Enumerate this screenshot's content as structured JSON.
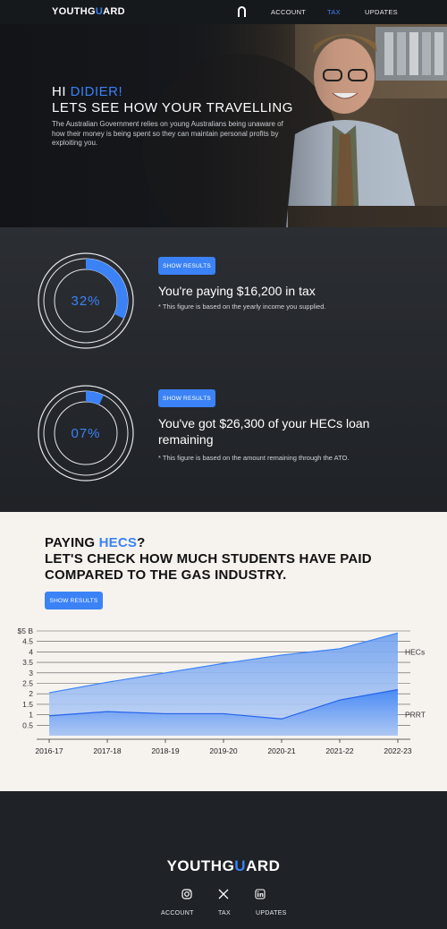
{
  "nav": {
    "logo_pre": "YOUTHG",
    "logo_accent": "U",
    "logo_post": "ARD",
    "links": [
      "ACCOUNT",
      "TAX",
      "UPDATES"
    ],
    "active": "TAX"
  },
  "hero": {
    "greet": "HI ",
    "name": "DIDIER!",
    "title": "LETS SEE HOW YOUR TRAVELLING",
    "subtitle": "The Australian Government relies on young Australians being unaware of how their money is being spent so they can maintain personal profits by exploiting you."
  },
  "results": [
    {
      "percent_label": "32%",
      "percent": 32,
      "button": "SHOW RESULTS",
      "headline": "You're paying $16,200 in tax",
      "note": "* This figure is based on the yearly income you supplied."
    },
    {
      "percent_label": "07%",
      "percent": 7,
      "button": "SHOW RESULTS",
      "headline": "You've got $26,300 of your HECs loan remaining",
      "note": "* This figure is based on the amount remaining through the ATO."
    }
  ],
  "hecs": {
    "title_pre": "PAYING ",
    "title_accent": "HECS",
    "title_post": "?",
    "subtitle": "LET'S CHECK HOW MUCH STUDENTS HAVE PAID COMPARED TO THE GAS INDUSTRY.",
    "button": "SHOW RESULTS"
  },
  "chart_data": {
    "type": "area",
    "categories": [
      "2016-17",
      "2017-18",
      "2018-19",
      "2019-20",
      "2020-21",
      "2021-22",
      "2022-23"
    ],
    "y_ticks": [
      "$5 B",
      "4.5",
      "4",
      "3.5",
      "3",
      "2.5",
      "2",
      "1.5",
      "1",
      "0.5"
    ],
    "ylim": [
      0,
      5
    ],
    "series": [
      {
        "name": "HECs",
        "values": [
          2.05,
          2.55,
          3.0,
          3.45,
          3.85,
          4.15,
          4.9
        ],
        "color": "#93b8f2"
      },
      {
        "name": "PRRT",
        "values": [
          0.95,
          1.15,
          1.05,
          1.05,
          0.8,
          1.7,
          2.2
        ],
        "color": "#3b82f6"
      }
    ],
    "grid": true
  },
  "footer": {
    "logo_pre": "YOUTHG",
    "logo_accent": "U",
    "logo_post": "ARD",
    "icons": [
      "instagram-icon",
      "x-icon",
      "linkedin-icon"
    ],
    "links": [
      "ACCOUNT",
      "TAX",
      "UPDATES"
    ]
  },
  "colors": {
    "accent": "#3b82f6",
    "dark": "#1f2226",
    "light": "#f6f3ef"
  }
}
